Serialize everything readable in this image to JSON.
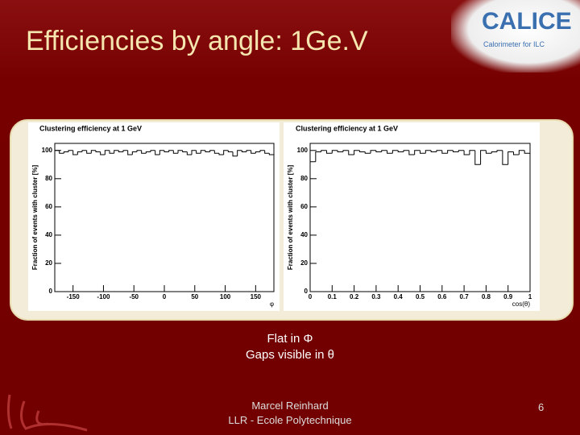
{
  "slide": {
    "title": "Efficiencies by angle: 1Ge.V",
    "logo_text": "CALICE",
    "logo_sub": "Calorimeter for ILC",
    "notes": [
      "Flat in Φ",
      "Gaps visible in θ"
    ],
    "author": "Marcel Reinhard",
    "affiliation": "LLR - Ecole Polytechnique",
    "page": "6"
  },
  "chart_data": [
    {
      "type": "histogram",
      "title": "Clustering efficiency at 1 GeV",
      "ylabel": "Fraction of events with cluster [%]",
      "xlabel": "φ",
      "color": "#000000",
      "bins": [
        -180,
        -172.5,
        -165,
        -157.5,
        -150,
        -142.5,
        -135,
        -127.5,
        -120,
        -112.5,
        -105,
        -97.5,
        -90,
        -82.5,
        -75,
        -67.5,
        -60,
        -52.5,
        -45,
        -37.5,
        -30,
        -22.5,
        -15,
        -7.5,
        0,
        7.5,
        15,
        22.5,
        30,
        37.5,
        45,
        52.5,
        60,
        67.5,
        75,
        82.5,
        90,
        97.5,
        105,
        112.5,
        120,
        127.5,
        135,
        142.5,
        150,
        157.5,
        165,
        172.5,
        180
      ],
      "values": [
        100,
        98,
        99,
        100,
        97,
        99,
        100,
        98,
        100,
        99,
        97,
        100,
        98,
        100,
        99,
        100,
        97,
        99,
        100,
        98,
        99,
        100,
        97,
        100,
        99,
        100,
        98,
        100,
        99,
        97,
        100,
        98,
        100,
        99,
        100,
        98,
        97,
        100,
        99,
        96,
        100,
        99,
        100,
        98,
        99,
        100,
        98,
        97
      ],
      "xlim": [
        -180,
        180
      ],
      "xticks": [
        -150,
        -100,
        -50,
        0,
        50,
        100,
        150
      ],
      "ylim": [
        0,
        105
      ],
      "yticks": [
        0,
        20,
        40,
        60,
        80,
        100
      ]
    },
    {
      "type": "histogram",
      "title": "Clustering efficiency at 1 GeV",
      "ylabel": "Fraction of events with cluster [%]",
      "xlabel": "cos(θ)",
      "color": "#000000",
      "bins": [
        0,
        0.025,
        0.05,
        0.075,
        0.1,
        0.125,
        0.15,
        0.175,
        0.2,
        0.225,
        0.25,
        0.275,
        0.3,
        0.325,
        0.35,
        0.375,
        0.4,
        0.425,
        0.45,
        0.475,
        0.5,
        0.525,
        0.55,
        0.575,
        0.6,
        0.625,
        0.65,
        0.675,
        0.7,
        0.725,
        0.75,
        0.775,
        0.8,
        0.825,
        0.85,
        0.875,
        0.9,
        0.925,
        0.95,
        0.975,
        1
      ],
      "values": [
        92,
        99,
        100,
        98,
        100,
        99,
        100,
        97,
        100,
        99,
        98,
        100,
        99,
        100,
        98,
        100,
        99,
        100,
        97,
        100,
        98,
        100,
        99,
        100,
        98,
        100,
        99,
        100,
        97,
        100,
        90,
        100,
        98,
        99,
        100,
        90,
        99,
        97,
        100,
        98
      ],
      "xlim": [
        0,
        1
      ],
      "xticks": [
        0,
        0.1,
        0.2,
        0.3,
        0.4,
        0.5,
        0.6,
        0.7,
        0.8,
        0.9,
        1
      ],
      "ylim": [
        0,
        105
      ],
      "yticks": [
        0,
        20,
        40,
        60,
        80,
        100
      ]
    }
  ]
}
